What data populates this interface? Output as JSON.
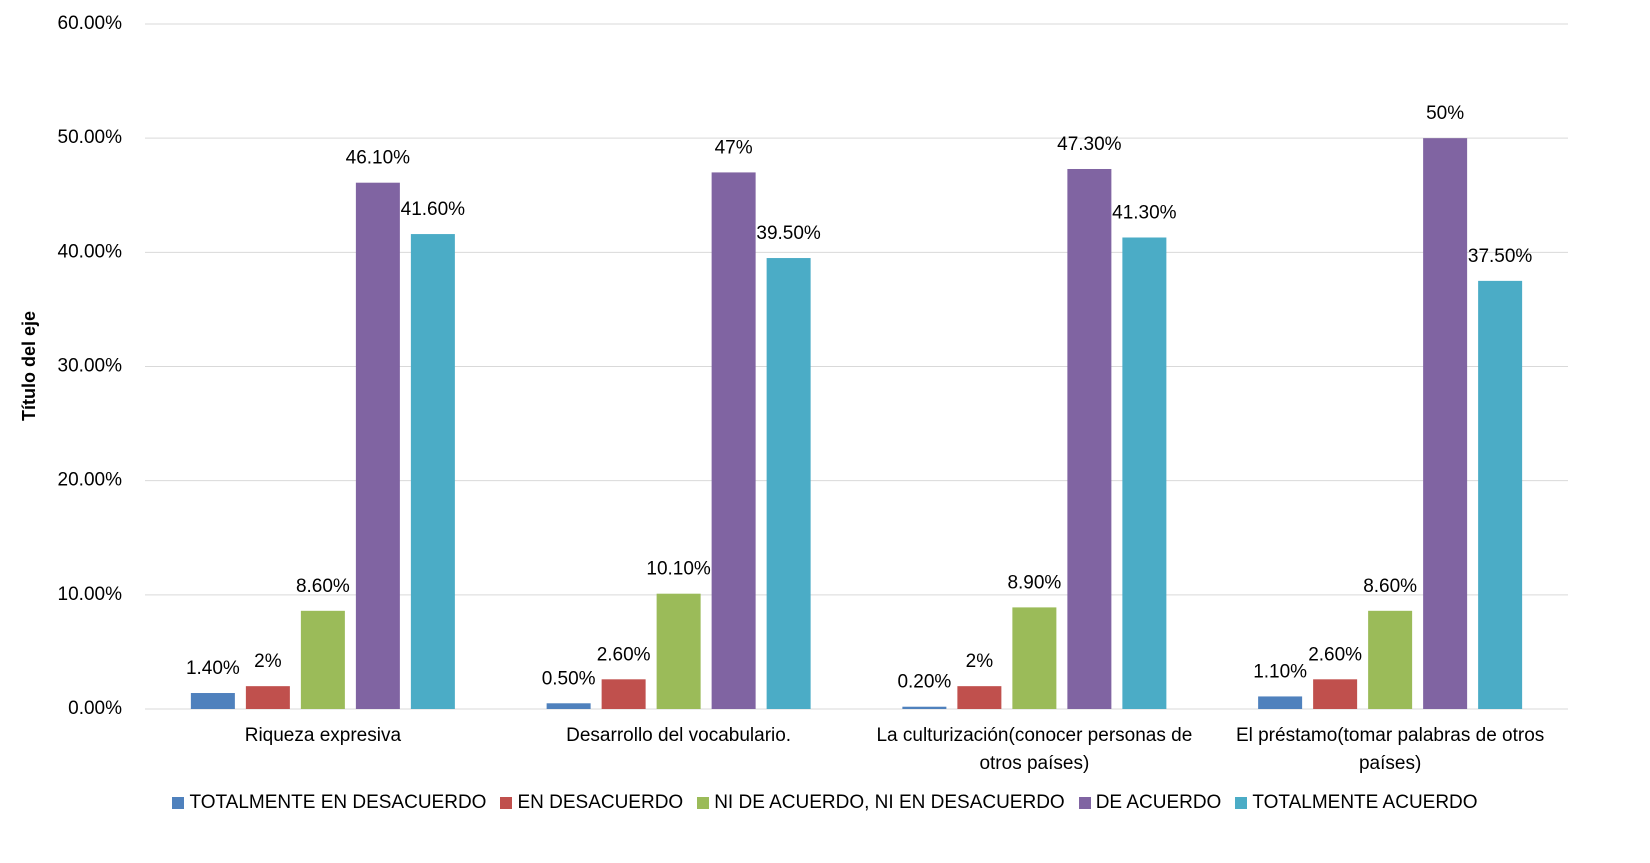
{
  "chart_data": {
    "type": "bar",
    "y_axis_label": "Título del eje",
    "categories": [
      "Riqueza expresiva",
      "Desarrollo del vocabulario.",
      "La culturización(conocer personas de otros países)",
      "El préstamo(tomar palabras de otros países)"
    ],
    "series": [
      {
        "name": "TOTALMENTE EN DESACUERDO",
        "color": "#4f81bd",
        "values": [
          1.4,
          0.5,
          0.2,
          1.1
        ],
        "value_labels": [
          "1.40%",
          "0.50%",
          "0.20%",
          "1.10%"
        ]
      },
      {
        "name": "EN DESACUERDO",
        "color": "#c0504d",
        "values": [
          2,
          2.6,
          2,
          2.6
        ],
        "value_labels": [
          "2%",
          "2.60%",
          "2%",
          "2.60%"
        ]
      },
      {
        "name": "NI DE ACUERDO, NI EN DESACUERDO",
        "color": "#9bbb59",
        "values": [
          8.6,
          10.1,
          8.9,
          8.6
        ],
        "value_labels": [
          "8.60%",
          "10.10%",
          "8.90%",
          "8.60%"
        ]
      },
      {
        "name": "DE ACUERDO",
        "color": "#8064a2",
        "values": [
          46.1,
          47,
          47.3,
          50
        ],
        "value_labels": [
          "46.10%",
          "47%",
          "47.30%",
          "50%"
        ]
      },
      {
        "name": "TOTALMENTE ACUERDO",
        "color": "#4bacc6",
        "values": [
          41.6,
          39.5,
          41.3,
          37.5
        ],
        "value_labels": [
          "41.60%",
          "39.50%",
          "41.30%",
          "37.50%"
        ]
      }
    ],
    "ylim": [
      0,
      60
    ],
    "yticks": [
      {
        "value": 0,
        "label": "0.00%"
      },
      {
        "value": 10,
        "label": "10.00%"
      },
      {
        "value": 20,
        "label": "20.00%"
      },
      {
        "value": 30,
        "label": "30.00%"
      },
      {
        "value": 40,
        "label": "40.00%"
      },
      {
        "value": 50,
        "label": "50.00%"
      },
      {
        "value": 60,
        "label": "60.00%"
      }
    ],
    "grid": true,
    "legend": "bottom"
  }
}
